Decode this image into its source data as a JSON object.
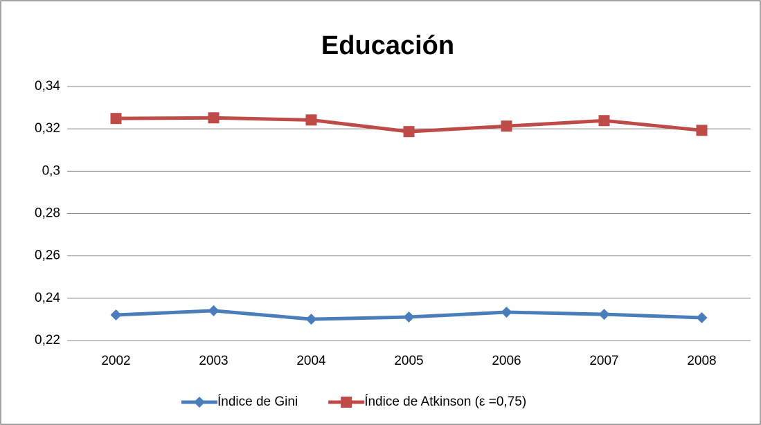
{
  "chart_data": {
    "type": "line",
    "title": "Educación",
    "categories": [
      "2002",
      "2003",
      "2004",
      "2005",
      "2006",
      "2007",
      "2008"
    ],
    "series": [
      {
        "name": "Índice de Gini",
        "color": "#4a7ebb",
        "marker": "diamond",
        "values": [
          0.2321,
          0.2341,
          0.2301,
          0.2311,
          0.2334,
          0.2324,
          0.2308
        ]
      },
      {
        "name": "Índice de Atkinson (ε =0,75)",
        "color": "#be4b48",
        "marker": "square",
        "values": [
          0.3249,
          0.3252,
          0.3242,
          0.3187,
          0.3213,
          0.3239,
          0.3193
        ]
      }
    ],
    "ylim": [
      0.22,
      0.34
    ],
    "yticks": [
      {
        "value": 0.22,
        "label": "0,22"
      },
      {
        "value": 0.24,
        "label": "0,24"
      },
      {
        "value": 0.26,
        "label": "0,26"
      },
      {
        "value": 0.28,
        "label": "0,28"
      },
      {
        "value": 0.3,
        "label": "0,3"
      },
      {
        "value": 0.32,
        "label": "0,32"
      },
      {
        "value": 0.34,
        "label": "0,34"
      }
    ],
    "grid": true,
    "legend": "bottom"
  }
}
